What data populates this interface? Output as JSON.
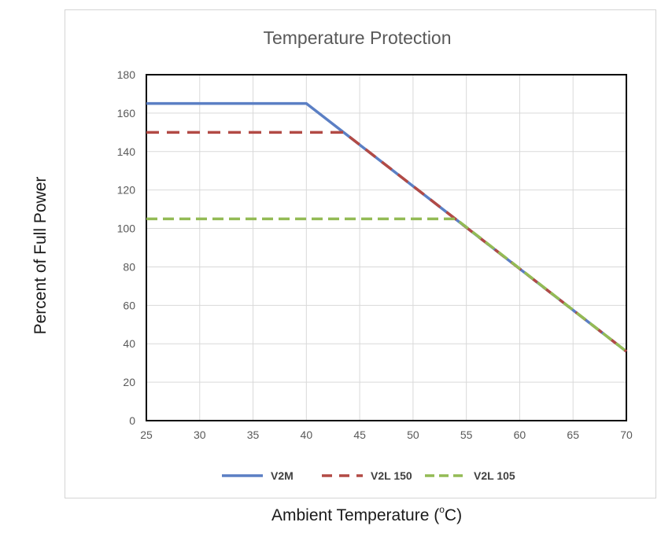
{
  "chart_data": {
    "type": "line",
    "title": "Temperature Protection",
    "xlabel_text": "Ambient Temperature (",
    "xlabel_sup": "o",
    "xlabel_unit": "C)",
    "ylabel": "Percent of Full Power",
    "xlim": [
      25,
      70
    ],
    "ylim": [
      0,
      180
    ],
    "xticks": [
      25,
      30,
      35,
      40,
      45,
      50,
      55,
      60,
      65,
      70
    ],
    "yticks": [
      0,
      20,
      40,
      60,
      80,
      100,
      120,
      140,
      160,
      180
    ],
    "grid": true,
    "legend_position": "bottom",
    "series": [
      {
        "name": "V2M",
        "color": "#5b7fc4",
        "dash": "solid",
        "x": [
          25,
          40,
          70
        ],
        "y": [
          165,
          165,
          36
        ]
      },
      {
        "name": "V2L 150",
        "color": "#b24a45",
        "dash": "dashed",
        "x": [
          25,
          43.5,
          70
        ],
        "y": [
          150,
          150,
          36
        ]
      },
      {
        "name": "V2L 105",
        "color": "#93bb55",
        "dash": "dashed",
        "x": [
          25,
          54,
          70
        ],
        "y": [
          105,
          105,
          36
        ]
      }
    ]
  }
}
